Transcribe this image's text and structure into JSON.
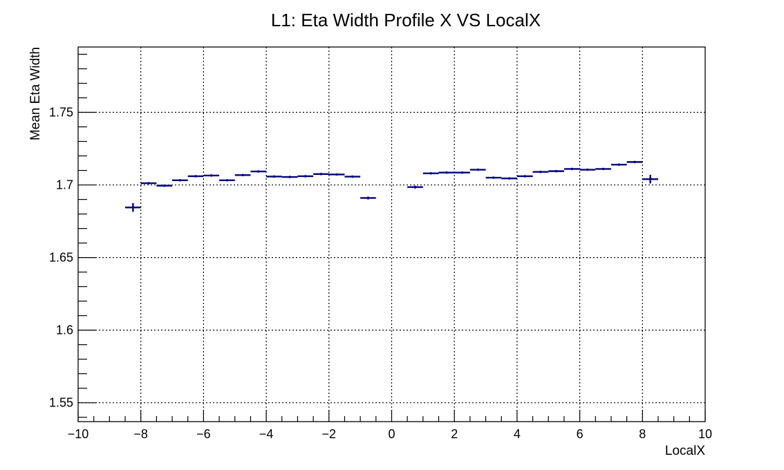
{
  "chart_data": {
    "type": "scatter",
    "title": "L1: Eta Width Profile X VS LocalX",
    "xlabel": "LocalX",
    "ylabel": "Mean Eta Width",
    "xlim": [
      -10,
      10
    ],
    "ylim": [
      1.537,
      1.795
    ],
    "grid": true,
    "x_tick_labels": [
      "−10",
      "−8",
      "−6",
      "−4",
      "−2",
      "0",
      "2",
      "4",
      "6",
      "8",
      "10"
    ],
    "y_tick_labels": [
      "1.55",
      "1.6",
      "1.65",
      "1.7",
      "1.75"
    ],
    "series": [
      {
        "color": "#000080",
        "points": [
          {
            "x": -8.25,
            "y": 1.6845,
            "xerr": 0.25,
            "yerr": 0.003
          },
          {
            "x": -7.75,
            "y": 1.7012,
            "xerr": 0.25,
            "yerr": 0.0008
          },
          {
            "x": -7.25,
            "y": 1.6995,
            "xerr": 0.25,
            "yerr": 0.0008
          },
          {
            "x": -6.75,
            "y": 1.7032,
            "xerr": 0.25,
            "yerr": 0.0008
          },
          {
            "x": -6.25,
            "y": 1.706,
            "xerr": 0.25,
            "yerr": 0.0008
          },
          {
            "x": -5.75,
            "y": 1.7065,
            "xerr": 0.25,
            "yerr": 0.0008
          },
          {
            "x": -5.25,
            "y": 1.7032,
            "xerr": 0.25,
            "yerr": 0.0008
          },
          {
            "x": -4.75,
            "y": 1.7068,
            "xerr": 0.25,
            "yerr": 0.0008
          },
          {
            "x": -4.25,
            "y": 1.7093,
            "xerr": 0.25,
            "yerr": 0.0008
          },
          {
            "x": -3.75,
            "y": 1.7058,
            "xerr": 0.25,
            "yerr": 0.0008
          },
          {
            "x": -3.25,
            "y": 1.7055,
            "xerr": 0.25,
            "yerr": 0.0008
          },
          {
            "x": -2.75,
            "y": 1.706,
            "xerr": 0.25,
            "yerr": 0.0008
          },
          {
            "x": -2.25,
            "y": 1.7075,
            "xerr": 0.25,
            "yerr": 0.0008
          },
          {
            "x": -1.75,
            "y": 1.7072,
            "xerr": 0.25,
            "yerr": 0.0008
          },
          {
            "x": -1.25,
            "y": 1.7057,
            "xerr": 0.25,
            "yerr": 0.0008
          },
          {
            "x": -0.75,
            "y": 1.691,
            "xerr": 0.25,
            "yerr": 0.001
          },
          {
            "x": 0.75,
            "y": 1.6985,
            "xerr": 0.25,
            "yerr": 0.001
          },
          {
            "x": 1.25,
            "y": 1.708,
            "xerr": 0.25,
            "yerr": 0.0008
          },
          {
            "x": 1.75,
            "y": 1.7085,
            "xerr": 0.25,
            "yerr": 0.0008
          },
          {
            "x": 2.25,
            "y": 1.7085,
            "xerr": 0.25,
            "yerr": 0.0008
          },
          {
            "x": 2.75,
            "y": 1.7105,
            "xerr": 0.25,
            "yerr": 0.0008
          },
          {
            "x": 3.25,
            "y": 1.705,
            "xerr": 0.25,
            "yerr": 0.0008
          },
          {
            "x": 3.75,
            "y": 1.7045,
            "xerr": 0.25,
            "yerr": 0.0008
          },
          {
            "x": 4.25,
            "y": 1.706,
            "xerr": 0.25,
            "yerr": 0.0008
          },
          {
            "x": 4.75,
            "y": 1.709,
            "xerr": 0.25,
            "yerr": 0.0008
          },
          {
            "x": 5.25,
            "y": 1.7095,
            "xerr": 0.25,
            "yerr": 0.0008
          },
          {
            "x": 5.75,
            "y": 1.711,
            "xerr": 0.25,
            "yerr": 0.0008
          },
          {
            "x": 6.25,
            "y": 1.7105,
            "xerr": 0.25,
            "yerr": 0.0008
          },
          {
            "x": 6.75,
            "y": 1.711,
            "xerr": 0.25,
            "yerr": 0.0008
          },
          {
            "x": 7.25,
            "y": 1.714,
            "xerr": 0.25,
            "yerr": 0.0008
          },
          {
            "x": 7.75,
            "y": 1.7158,
            "xerr": 0.25,
            "yerr": 0.0008
          },
          {
            "x": 8.25,
            "y": 1.704,
            "xerr": 0.25,
            "yerr": 0.003
          }
        ]
      }
    ]
  }
}
